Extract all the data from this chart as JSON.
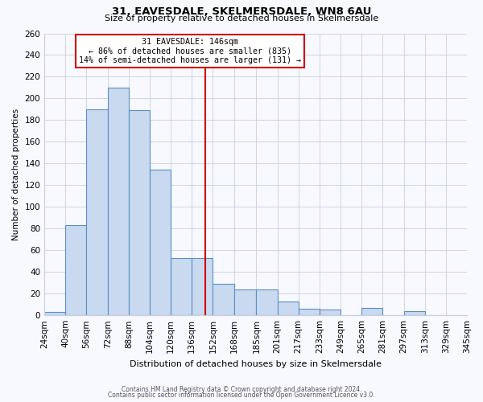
{
  "title": "31, EAVESDALE, SKELMERSDALE, WN8 6AU",
  "subtitle": "Size of property relative to detached houses in Skelmersdale",
  "xlabel": "Distribution of detached houses by size in Skelmersdale",
  "ylabel": "Number of detached properties",
  "footnote1": "Contains HM Land Registry data © Crown copyright and database right 2024.",
  "footnote2": "Contains public sector information licensed under the Open Government Licence v3.0.",
  "bar_edges": [
    24,
    40,
    56,
    72,
    88,
    104,
    120,
    136,
    152,
    168,
    185,
    201,
    217,
    233,
    249,
    265,
    281,
    297,
    313,
    329,
    345
  ],
  "bar_heights": [
    3,
    83,
    190,
    210,
    189,
    134,
    53,
    53,
    29,
    24,
    24,
    13,
    6,
    5,
    0,
    7,
    0,
    4,
    0,
    0
  ],
  "bar_color": "#c9d9f0",
  "bar_edgecolor": "#5a8fc3",
  "vline_x": 146,
  "vline_color": "#cc0000",
  "annotation_title": "31 EAVESDALE: 146sqm",
  "annotation_line1": "← 86% of detached houses are smaller (835)",
  "annotation_line2": "14% of semi-detached houses are larger (131) →",
  "annotation_box_edgecolor": "#cc0000",
  "annotation_box_facecolor": "#ffffff",
  "ylim": [
    0,
    260
  ],
  "yticks": [
    0,
    20,
    40,
    60,
    80,
    100,
    120,
    140,
    160,
    180,
    200,
    220,
    240,
    260
  ],
  "tick_labels": [
    "24sqm",
    "40sqm",
    "56sqm",
    "72sqm",
    "88sqm",
    "104sqm",
    "120sqm",
    "136sqm",
    "152sqm",
    "168sqm",
    "185sqm",
    "201sqm",
    "217sqm",
    "233sqm",
    "249sqm",
    "265sqm",
    "281sqm",
    "297sqm",
    "313sqm",
    "329sqm",
    "345sqm"
  ],
  "background_color": "#f8f8ff",
  "grid_color": "#c8d0e0"
}
